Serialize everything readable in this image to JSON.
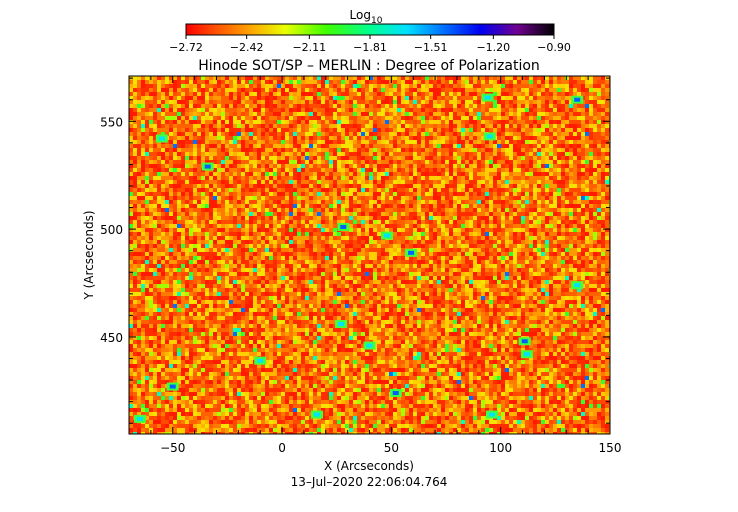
{
  "chart_data": {
    "type": "heatmap",
    "title": "Hinode SOT/SP – MERLIN : Degree of Polarization",
    "xlabel": "X (Arcseconds)",
    "ylabel": "Y (Arcseconds)",
    "xlim": [
      -70,
      150
    ],
    "ylim": [
      405,
      571
    ],
    "x_ticks": [
      -50,
      0,
      50,
      100,
      150
    ],
    "y_ticks": [
      450,
      500,
      550
    ],
    "x_tick_labels": [
      "−50",
      "0",
      "50",
      "100",
      "150"
    ],
    "y_tick_labels": [
      "450",
      "500",
      "550"
    ],
    "timestamp": "13–Jul–2020 22:06:04.764",
    "colorbar": {
      "label_base": "Log",
      "label_sub": "10",
      "range": [
        -2.72,
        -0.9
      ],
      "ticks": [
        -2.72,
        -2.42,
        -2.11,
        -1.81,
        -1.51,
        -1.2,
        -0.9
      ],
      "tick_labels": [
        "−2.72",
        "−2.42",
        "−2.11",
        "−1.81",
        "−1.51",
        "−1.20",
        "−0.90"
      ],
      "colormap": "rainbow (red → orange → yellow → green → cyan → blue → purple → black)"
    },
    "field": {
      "description": "log10 degree of polarization; background mostly near the low end with scattered higher-value patches",
      "typical_value": -2.6
    }
  }
}
